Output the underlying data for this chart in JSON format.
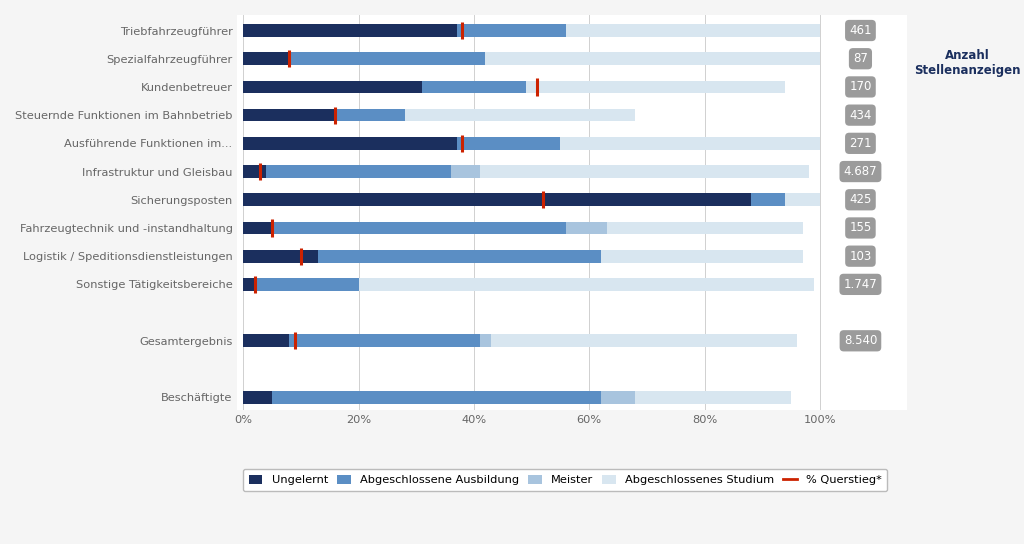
{
  "categories": [
    "Triebfahrzeugführer",
    "Spezialfahrzeugführer",
    "Kundenbetreuer",
    "Steuernde Funktionen im Bahnbetrieb",
    "Ausführende Funktionen im...",
    "Infrastruktur und Gleisbau",
    "Sicherungsposten",
    "Fahrzeugtechnik und -instandhaltung",
    "Logistik / Speditionsdienstleistungen",
    "Sonstige Tätigkeitsbereiche",
    "",
    "Gesamtergebnis",
    "",
    "Beschäftigte"
  ],
  "ungelernt": [
    37,
    8,
    31,
    16,
    37,
    4,
    88,
    5,
    13,
    2,
    0,
    8,
    0,
    5
  ],
  "ausbildung": [
    19,
    34,
    18,
    12,
    18,
    32,
    6,
    51,
    49,
    18,
    0,
    33,
    0,
    57
  ],
  "meister": [
    0,
    0,
    0,
    0,
    0,
    5,
    0,
    7,
    0,
    0,
    0,
    2,
    0,
    6
  ],
  "studium": [
    44,
    58,
    45,
    40,
    45,
    57,
    6,
    34,
    35,
    79,
    0,
    53,
    0,
    27
  ],
  "querstieg": [
    38,
    8,
    51,
    16,
    38,
    3,
    52,
    5,
    10,
    2,
    0,
    9,
    0,
    0
  ],
  "labels": [
    "461",
    "87",
    "170",
    "434",
    "271",
    "4.687",
    "425",
    "155",
    "103",
    "1.747",
    "",
    "8.540",
    "",
    ""
  ],
  "color_ungelernt": "#1b2f5e",
  "color_ausbildung": "#5b8ec4",
  "color_meister": "#a8c4de",
  "color_studium": "#d8e6f0",
  "color_querstieg": "#cc2200",
  "color_label_bg": "#9b9b9b",
  "color_label_text": "#ffffff",
  "color_bg": "#f5f5f5",
  "color_plot_bg": "#ffffff",
  "legend_items": [
    "Ungelernt",
    "Abgeschlossene Ausbildung",
    "Meister",
    "Abgeschlossenes Studium",
    "% Querstieg*"
  ],
  "title_right": "Anzahl\nStellenanzeigen",
  "xticks": [
    0,
    20,
    40,
    60,
    80,
    100
  ],
  "bar_height": 0.45
}
